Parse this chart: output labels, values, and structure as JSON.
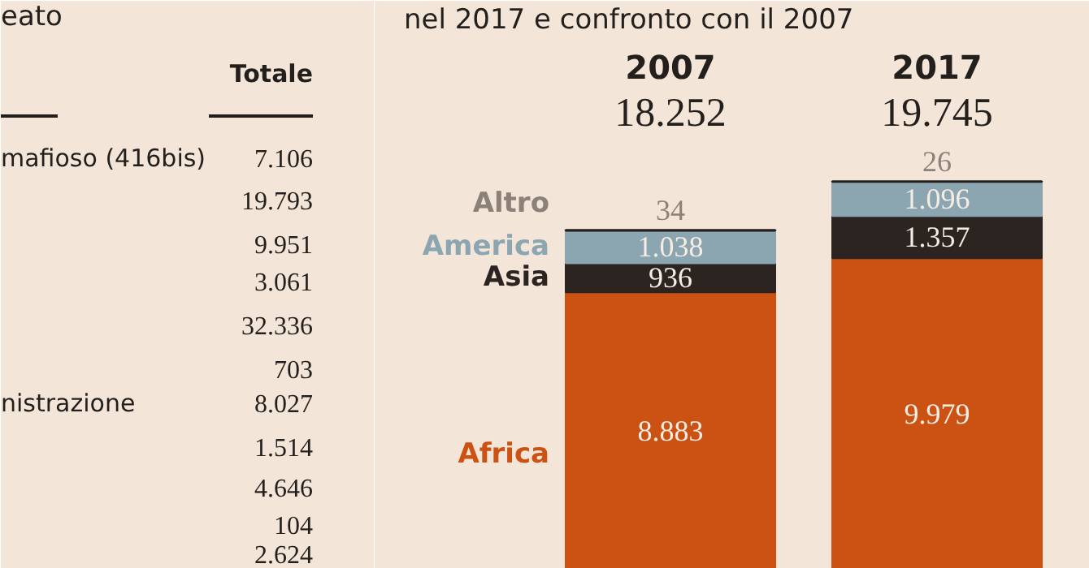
{
  "chart_data": {
    "type": "bar",
    "stacked": true,
    "subtitle": "nel 2017 e confronto con il 2007",
    "categories": [
      "2007",
      "2017"
    ],
    "ylim": [
      0,
      18250
    ],
    "tick_labels": false,
    "grid": false,
    "series": [
      {
        "name": "Africa",
        "color": "#cc5214",
        "values": [
          8883,
          9979
        ],
        "value_labels": [
          "8.883",
          "9.979"
        ]
      },
      {
        "name": "Asia",
        "color": "#2b2421",
        "values": [
          936,
          1357
        ],
        "value_labels": [
          "936",
          "1.357"
        ]
      },
      {
        "name": "America",
        "color": "#8ba5b1",
        "values": [
          1038,
          1096
        ],
        "value_labels": [
          "1.038",
          "1.096"
        ]
      },
      {
        "name": "Altro",
        "color": "#8c8179",
        "values": [
          34,
          26
        ],
        "value_labels": [
          "34",
          "26"
        ]
      }
    ],
    "annotations": [
      "eato",
      "Totale",
      "mafioso (416bis)",
      "7.106",
      "19.793",
      "9.951",
      "3.061",
      "32.336",
      "703",
      "nistrazione",
      "8.027",
      "1.514",
      "4.646",
      "104",
      "2.624",
      "18.252",
      "19.745"
    ]
  }
}
